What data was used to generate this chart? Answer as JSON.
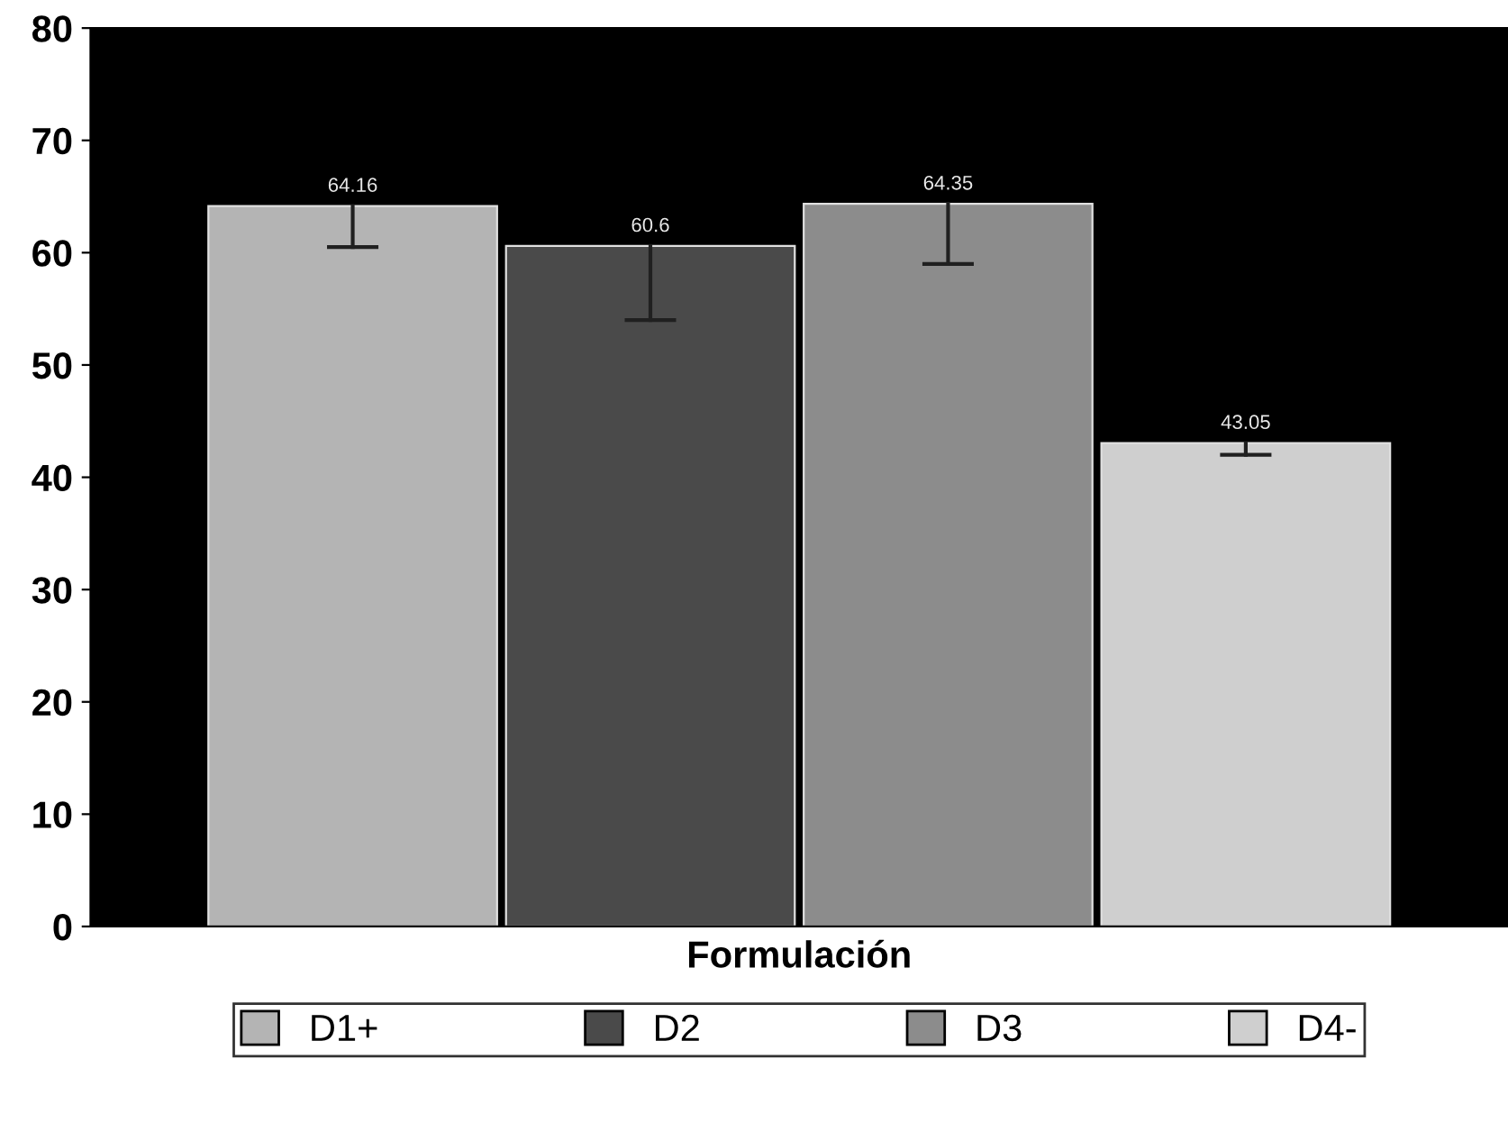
{
  "chart_data": {
    "type": "bar",
    "xlabel": "Formulación",
    "categories": [
      null
    ],
    "series": [
      {
        "name": "D1+",
        "color": "#b4b4b4",
        "values": [
          64.16
        ],
        "errors": [
          [
            60.5,
            64.16
          ]
        ]
      },
      {
        "name": "D2",
        "color": "#4a4a4a",
        "values": [
          60.6
        ],
        "errors": [
          [
            54,
            60.6
          ]
        ]
      },
      {
        "name": "D3",
        "color": "#8c8c8c",
        "values": [
          64.35
        ],
        "errors": [
          [
            59,
            64.35
          ]
        ]
      },
      {
        "name": "D4-",
        "color": "#cfcfcf",
        "values": [
          43.05
        ],
        "errors": [
          [
            42,
            43.05
          ]
        ]
      }
    ],
    "ylim": [
      0,
      80
    ],
    "yticks": [
      0,
      10,
      20,
      30,
      40,
      50,
      60,
      70,
      80
    ],
    "grid": false,
    "legend": "bottom",
    "data_labels": true
  }
}
